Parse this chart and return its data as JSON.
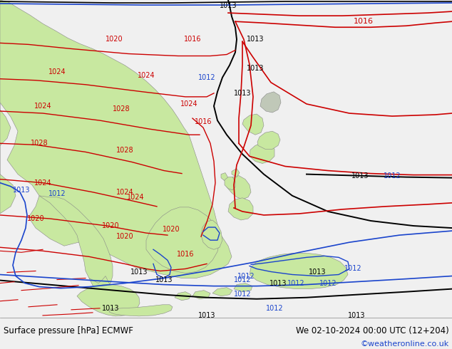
{
  "title_left": "Surface pressure [hPa] ECMWF",
  "title_right": "We 02-10-2024 00:00 UTC (12+204)",
  "copyright": "©weatheronline.co.uk",
  "bg_map": "#d4dde6",
  "land_green": "#c8e8a0",
  "land_gray": "#b8bcc0",
  "sea_bg": "#d4dde6",
  "bottom_bg": "#f0f0f0",
  "figsize": [
    6.34,
    4.9
  ],
  "dpi": 100,
  "col_black": "#000000",
  "col_red": "#cc0000",
  "col_blue": "#1a44cc"
}
